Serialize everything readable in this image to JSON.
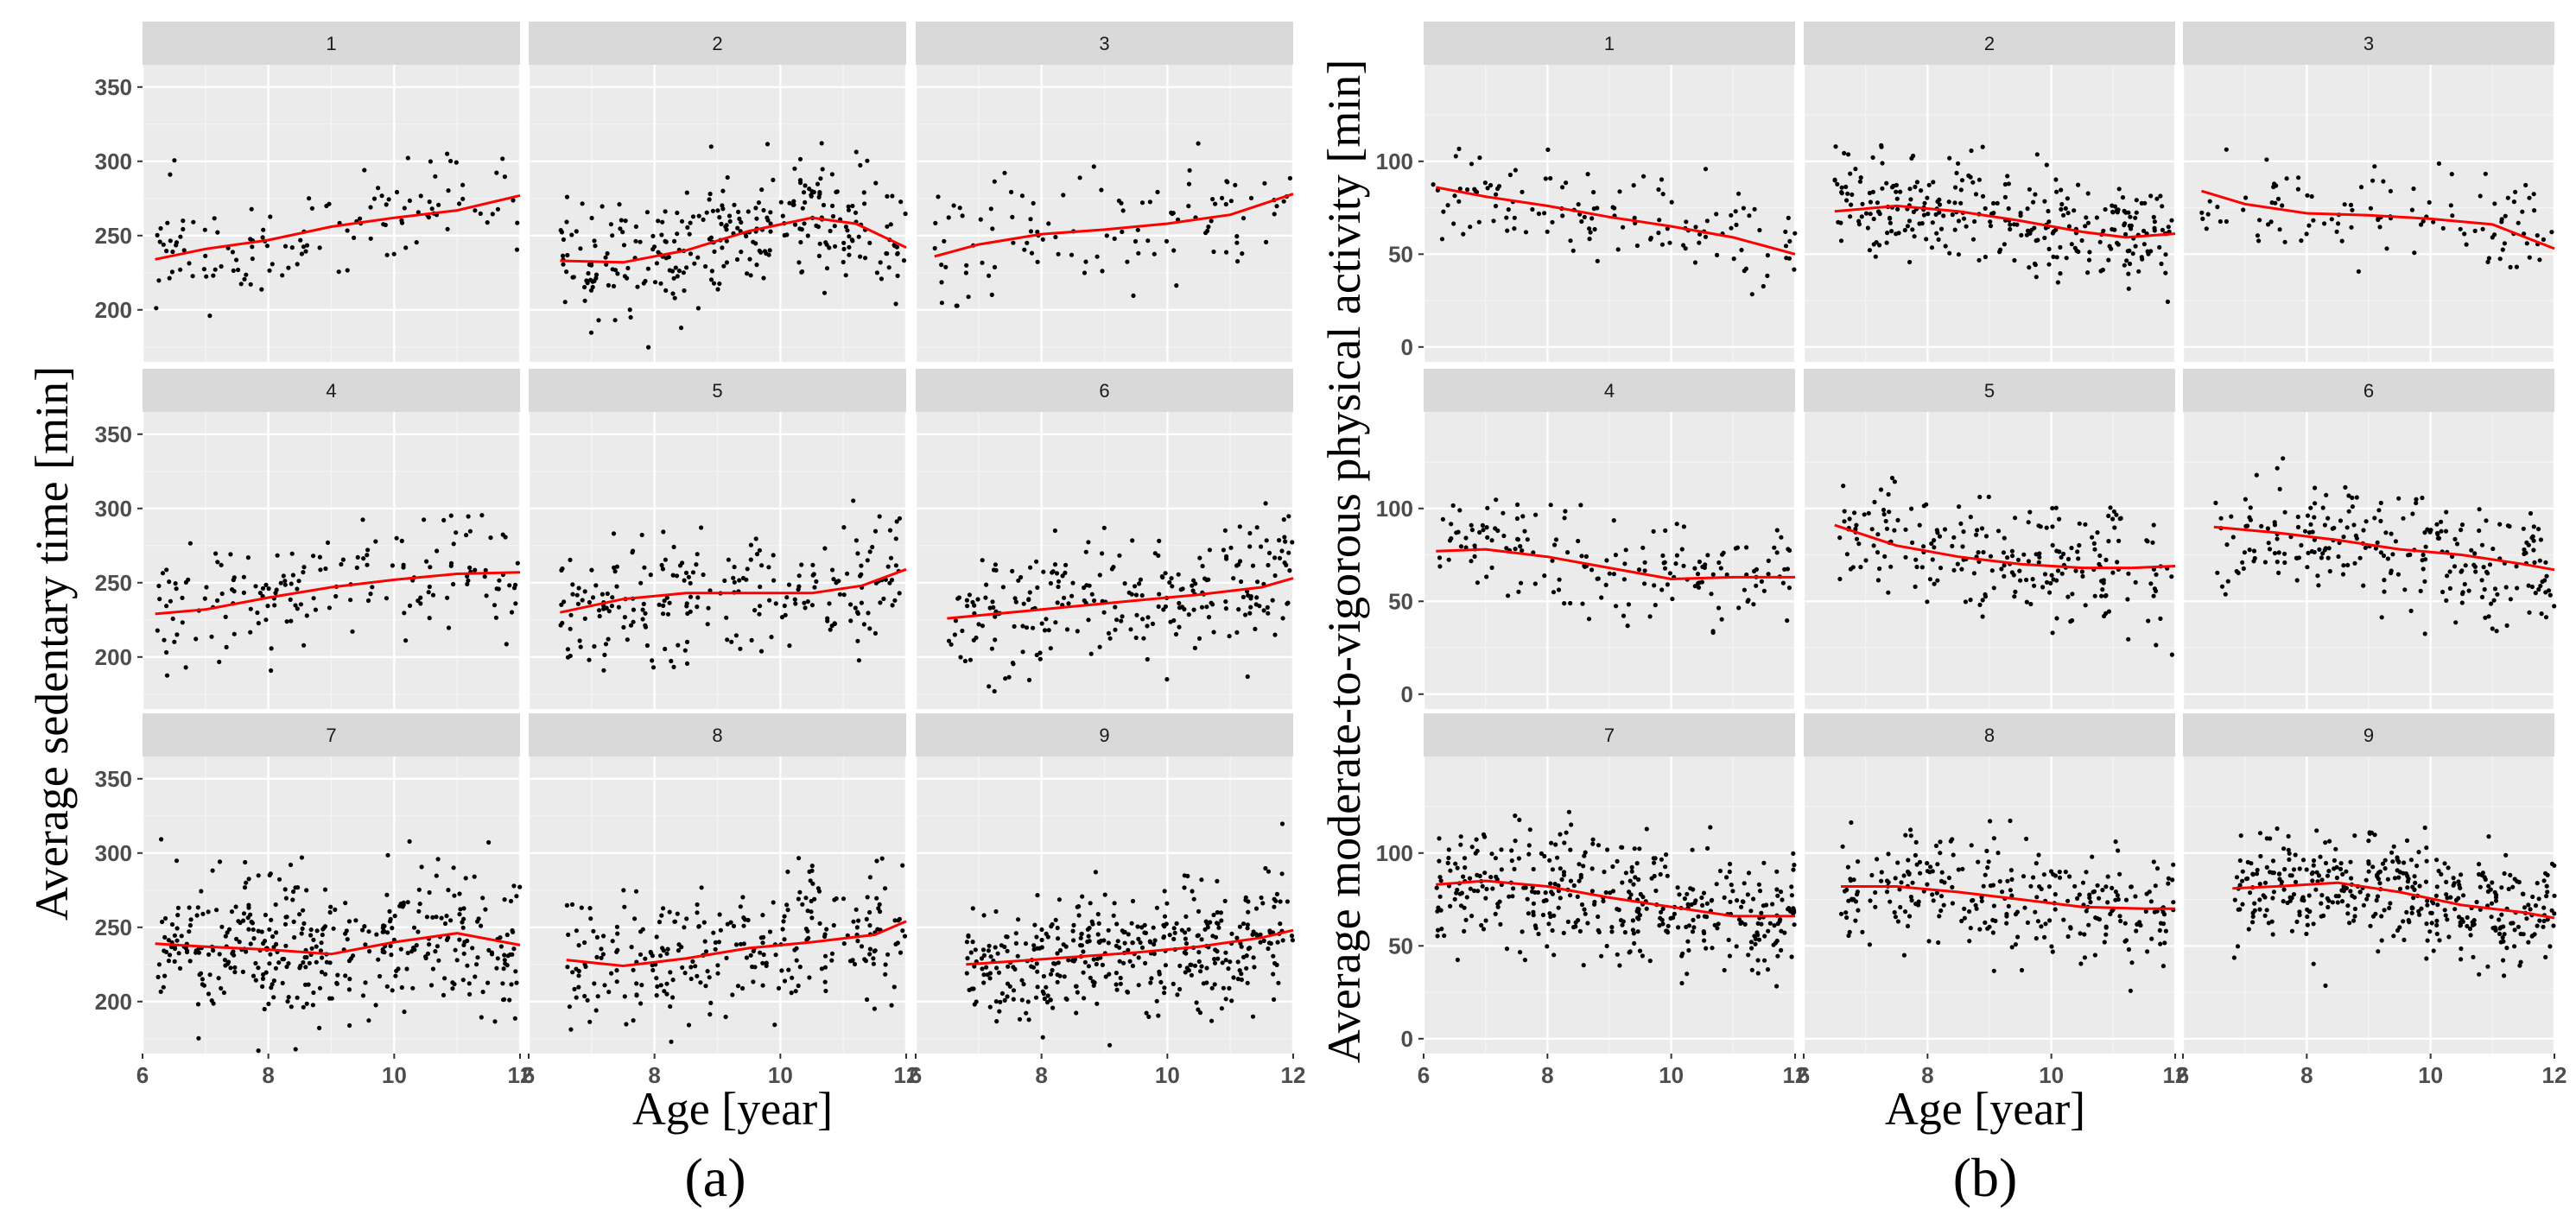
{
  "figure_a_label": "(a)",
  "figure_b_label": "(b)",
  "colors": {
    "points": "#000000",
    "trend": "#ff0000",
    "panel_bg": "#ebebeb",
    "strip_bg": "#d9d9d9"
  },
  "chart_data": [
    {
      "type": "scatter",
      "title": "",
      "ylabel": "Average sedentary time [min]",
      "xlabel": "Age [year]",
      "xlim": [
        6,
        12
      ],
      "ylim": [
        165,
        365
      ],
      "xticks": [
        6,
        8,
        10,
        12
      ],
      "yticks": [
        200,
        250,
        300,
        350
      ],
      "grid": true,
      "facets": [
        {
          "label": "1",
          "n": 130,
          "trend": [
            [
              6.2,
              234
            ],
            [
              7,
              241
            ],
            [
              8,
              247
            ],
            [
              9,
              256
            ],
            [
              10,
              262
            ],
            [
              11,
              267
            ],
            [
              12,
              277
            ]
          ],
          "spread": 18,
          "xmin": 6.1
        },
        {
          "label": "2",
          "n": 300,
          "trend": [
            [
              6.5,
              233
            ],
            [
              7.5,
              232
            ],
            [
              8.5,
              240
            ],
            [
              9.5,
              253
            ],
            [
              10.5,
              262
            ],
            [
              11.2,
              258
            ],
            [
              12,
              242
            ]
          ],
          "spread": 20,
          "xmin": 6.5
        },
        {
          "label": "3",
          "n": 110,
          "trend": [
            [
              6.3,
              236
            ],
            [
              7,
              244
            ],
            [
              8,
              251
            ],
            [
              9,
              254
            ],
            [
              10,
              258
            ],
            [
              11,
              264
            ],
            [
              12,
              278
            ]
          ],
          "spread": 20,
          "xmin": 6.3
        },
        {
          "label": "4",
          "n": 170,
          "trend": [
            [
              6.2,
              229
            ],
            [
              7,
              232
            ],
            [
              8,
              240
            ],
            [
              9,
              247
            ],
            [
              10,
              252
            ],
            [
              11,
              256
            ],
            [
              12,
              257
            ]
          ],
          "spread": 18,
          "xmin": 6.2
        },
        {
          "label": "5",
          "n": 230,
          "trend": [
            [
              6.5,
              230
            ],
            [
              7.5,
              239
            ],
            [
              8.5,
              243
            ],
            [
              9.5,
              243
            ],
            [
              10.5,
              243
            ],
            [
              11.3,
              248
            ],
            [
              12,
              259
            ]
          ],
          "spread": 22,
          "xmin": 6.5
        },
        {
          "label": "6",
          "n": 250,
          "trend": [
            [
              6.5,
              226
            ],
            [
              7.5,
              230
            ],
            [
              8.5,
              234
            ],
            [
              9.5,
              238
            ],
            [
              10.5,
              242
            ],
            [
              11.5,
              247
            ],
            [
              12,
              253
            ]
          ],
          "spread": 22,
          "xmin": 6.5
        },
        {
          "label": "7",
          "n": 400,
          "trend": [
            [
              6.2,
              239
            ],
            [
              7,
              237
            ],
            [
              8,
              235
            ],
            [
              9,
              232
            ],
            [
              10,
              240
            ],
            [
              11,
              246
            ],
            [
              12,
              238
            ]
          ],
          "spread": 25,
          "xmin": 6.2
        },
        {
          "label": "8",
          "n": 280,
          "trend": [
            [
              6.6,
              228
            ],
            [
              7.5,
              224
            ],
            [
              8.5,
              229
            ],
            [
              9.5,
              236
            ],
            [
              10.5,
              240
            ],
            [
              11.5,
              245
            ],
            [
              12,
              254
            ]
          ],
          "spread": 22,
          "xmin": 6.6
        },
        {
          "label": "9",
          "n": 400,
          "trend": [
            [
              6.8,
              225
            ],
            [
              7.5,
              227
            ],
            [
              8.5,
              230
            ],
            [
              9.5,
              233
            ],
            [
              10.5,
              237
            ],
            [
              11.5,
              243
            ],
            [
              12,
              248
            ]
          ],
          "spread": 20,
          "xmin": 6.8
        }
      ]
    },
    {
      "type": "scatter",
      "title": "",
      "ylabel": "Average moderate-to-vigorous physical activity [min]",
      "xlabel": "Age [year]",
      "xlim": [
        6,
        12
      ],
      "ylim": [
        -8,
        152
      ],
      "xticks": [
        6,
        8,
        10,
        12
      ],
      "yticks": [
        0,
        50,
        100
      ],
      "grid": true,
      "facets": [
        {
          "label": "1",
          "n": 130,
          "trend": [
            [
              6.2,
              86
            ],
            [
              7,
              81
            ],
            [
              8,
              76
            ],
            [
              9,
              70
            ],
            [
              10,
              65
            ],
            [
              11,
              59
            ],
            [
              12,
              50
            ]
          ],
          "spread": 13,
          "xmin": 6.1
        },
        {
          "label": "2",
          "n": 300,
          "trend": [
            [
              6.5,
              73
            ],
            [
              7.5,
              76
            ],
            [
              8.5,
              73
            ],
            [
              9.5,
              68
            ],
            [
              10.5,
              62
            ],
            [
              11.2,
              59
            ],
            [
              12,
              61
            ]
          ],
          "spread": 14,
          "xmin": 6.5
        },
        {
          "label": "3",
          "n": 110,
          "trend": [
            [
              6.3,
              84
            ],
            [
              7,
              77
            ],
            [
              8,
              72
            ],
            [
              9,
              71
            ],
            [
              10,
              69
            ],
            [
              11,
              66
            ],
            [
              12,
              53
            ]
          ],
          "spread": 13,
          "xmin": 6.3
        },
        {
          "label": "4",
          "n": 170,
          "trend": [
            [
              6.2,
              77
            ],
            [
              7,
              78
            ],
            [
              8,
              74
            ],
            [
              9,
              68
            ],
            [
              10,
              62
            ],
            [
              11,
              63
            ],
            [
              12,
              63
            ]
          ],
          "spread": 13,
          "xmin": 6.2
        },
        {
          "label": "5",
          "n": 230,
          "trend": [
            [
              6.5,
              91
            ],
            [
              7.5,
              80
            ],
            [
              8.5,
              74
            ],
            [
              9.5,
              70
            ],
            [
              10.5,
              68
            ],
            [
              11.3,
              68
            ],
            [
              12,
              69
            ]
          ],
          "spread": 15,
          "xmin": 6.5
        },
        {
          "label": "6",
          "n": 250,
          "trend": [
            [
              6.5,
              90
            ],
            [
              7.5,
              87
            ],
            [
              8.5,
              83
            ],
            [
              9.5,
              78
            ],
            [
              10.5,
              75
            ],
            [
              11.5,
              70
            ],
            [
              12,
              67
            ]
          ],
          "spread": 15,
          "xmin": 6.5
        },
        {
          "label": "7",
          "n": 400,
          "trend": [
            [
              6.2,
              83
            ],
            [
              7,
              85
            ],
            [
              8,
              82
            ],
            [
              9,
              76
            ],
            [
              10,
              71
            ],
            [
              11,
              66
            ],
            [
              12,
              66
            ]
          ],
          "spread": 17,
          "xmin": 6.2
        },
        {
          "label": "8",
          "n": 280,
          "trend": [
            [
              6.6,
              82
            ],
            [
              7.5,
              82
            ],
            [
              8.5,
              79
            ],
            [
              9.5,
              75
            ],
            [
              10.5,
              71
            ],
            [
              11.5,
              70
            ],
            [
              12,
              70
            ]
          ],
          "spread": 15,
          "xmin": 6.6
        },
        {
          "label": "9",
          "n": 400,
          "trend": [
            [
              6.8,
              81
            ],
            [
              7.5,
              82
            ],
            [
              8.5,
              84
            ],
            [
              9.5,
              79
            ],
            [
              10.5,
              72
            ],
            [
              11.5,
              68
            ],
            [
              12,
              65
            ]
          ],
          "spread": 15,
          "xmin": 6.8
        }
      ]
    }
  ]
}
